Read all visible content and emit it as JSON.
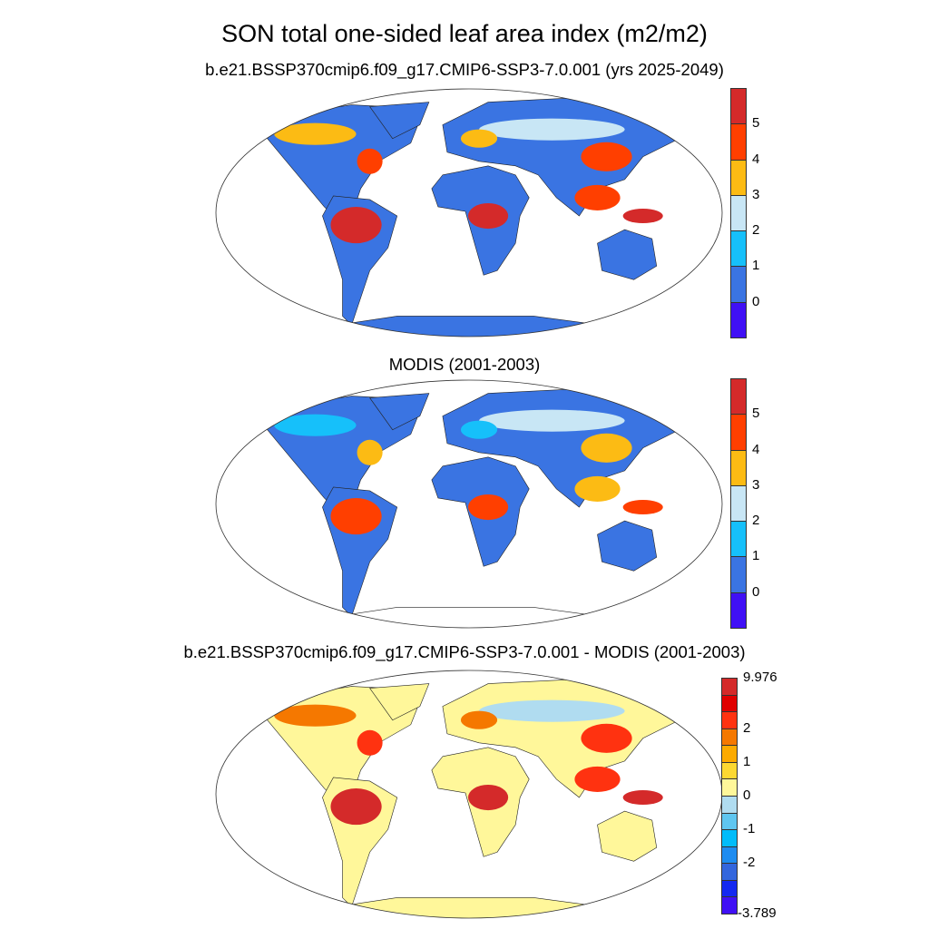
{
  "title": "SON total one-sided leaf area index (m2/m2)",
  "panels": [
    {
      "subtitle": "b.e21.BSSP370cmip6.f09_g17.CMIP6-SSP3-7.0.001 (yrs 2025-2049)",
      "colorbar": {
        "colors": [
          "#4010f5",
          "#3a74e2",
          "#16c0fa",
          "#c8e6f5",
          "#fcbb14",
          "#ff3f00",
          "#d42a2a"
        ],
        "labels": [
          "0",
          "1",
          "2",
          "3",
          "4",
          "5"
        ]
      },
      "land_color": "#3a74e2",
      "highlights": {
        "high": "#d42a2a",
        "mid": "#ff3f00",
        "low": "#fcbb14",
        "light": "#c8e6f5"
      }
    },
    {
      "subtitle": "MODIS (2001-2003)",
      "colorbar": {
        "colors": [
          "#4010f5",
          "#3a74e2",
          "#16c0fa",
          "#c8e6f5",
          "#fcbb14",
          "#ff3f00",
          "#d42a2a"
        ],
        "labels": [
          "0",
          "1",
          "2",
          "3",
          "4",
          "5"
        ]
      },
      "land_color": "#3a74e2",
      "highlights": {
        "high": "#ff3f00",
        "mid": "#fcbb14",
        "low": "#16c0fa",
        "light": "#c8e6f5"
      }
    },
    {
      "subtitle": "b.e21.BSSP370cmip6.f09_g17.CMIP6-SSP3-7.0.001 - MODIS (2001-2003)",
      "colorbar": {
        "colors": [
          "#4010f5",
          "#1428f0",
          "#3366dd",
          "#1e8cf0",
          "#00bcfa",
          "#5fc6f0",
          "#b0dcf0",
          "#fff79a",
          "#fcd832",
          "#fcaa00",
          "#f57800",
          "#ff3210",
          "#e00000",
          "#d42a2a"
        ],
        "labels": [
          "9.976",
          "2",
          "1",
          "0",
          "-1",
          "-2",
          "-3.789"
        ]
      },
      "land_color": "#fff79a",
      "highlights": {
        "high": "#d42a2a",
        "mid": "#ff3210",
        "low": "#f57800",
        "light": "#b0dcf0"
      }
    }
  ]
}
